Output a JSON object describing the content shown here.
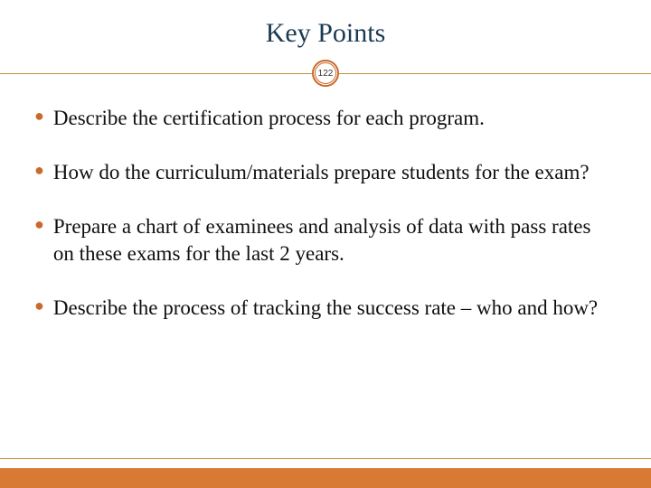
{
  "slide": {
    "title": "Key Points",
    "page_number": "122",
    "bullets": [
      "Describe the certification process for each program.",
      "How do the curriculum/materials prepare students for the exam?",
      "Prepare a chart of examinees and analysis of data with pass rates on these exams for the last 2 years.",
      "Describe the process of tracking the success rate – who and how?"
    ]
  },
  "style": {
    "title_color": "#1a3a52",
    "title_fontsize": 30,
    "bullet_color": "#c96a2a",
    "text_color": "#0f0f0f",
    "text_fontsize": 23,
    "accent_bar_color": "#d97a34",
    "divider_color": "#c98a3a",
    "background": "#ffffff",
    "badge_ring_color": "#c96a2a"
  }
}
